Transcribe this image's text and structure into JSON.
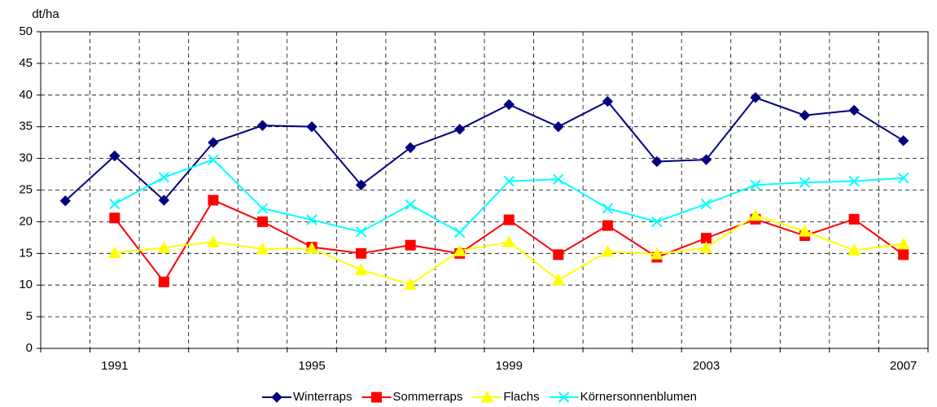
{
  "chart_data": {
    "type": "line",
    "y_label": "dt/ha",
    "categories": [
      null,
      "1991",
      null,
      null,
      null,
      "1995",
      null,
      null,
      null,
      "1999",
      null,
      null,
      null,
      "2003",
      null,
      null,
      null,
      "2007"
    ],
    "series": [
      {
        "name": "Winterraps",
        "color": "#000080",
        "marker": "diamond",
        "values": [
          23.3,
          30.4,
          23.4,
          32.5,
          35.2,
          35.0,
          25.8,
          31.7,
          34.6,
          38.5,
          35.0,
          39.0,
          29.5,
          29.8,
          39.6,
          36.8,
          37.6,
          32.8
        ]
      },
      {
        "name": "Sommerraps",
        "color": "#ff0000",
        "marker": "square",
        "values": [
          null,
          20.6,
          10.5,
          23.4,
          20.0,
          16.0,
          15.0,
          16.3,
          15.0,
          20.3,
          14.8,
          19.4,
          14.4,
          17.4,
          20.4,
          17.8,
          20.4,
          14.8
        ]
      },
      {
        "name": "Flachs",
        "color": "#ffff00",
        "marker": "triangle",
        "values": [
          null,
          15.1,
          15.9,
          16.8,
          15.7,
          15.8,
          12.4,
          10.1,
          15.4,
          16.8,
          10.8,
          15.3,
          14.9,
          15.9,
          21.0,
          18.5,
          15.5,
          16.5
        ]
      },
      {
        "name": "Körnersonnenblumen",
        "color": "#00ffff",
        "marker": "x",
        "values": [
          null,
          22.8,
          27.0,
          29.8,
          22.1,
          20.3,
          18.4,
          22.7,
          18.3,
          26.4,
          26.7,
          22.1,
          20.0,
          22.8,
          25.8,
          26.2,
          26.4,
          26.9
        ]
      }
    ],
    "ylim": [
      0,
      50
    ],
    "yticks": [
      0,
      5,
      10,
      15,
      20,
      25,
      30,
      35,
      40,
      45,
      50
    ],
    "grid": true,
    "legend": "bottom"
  }
}
